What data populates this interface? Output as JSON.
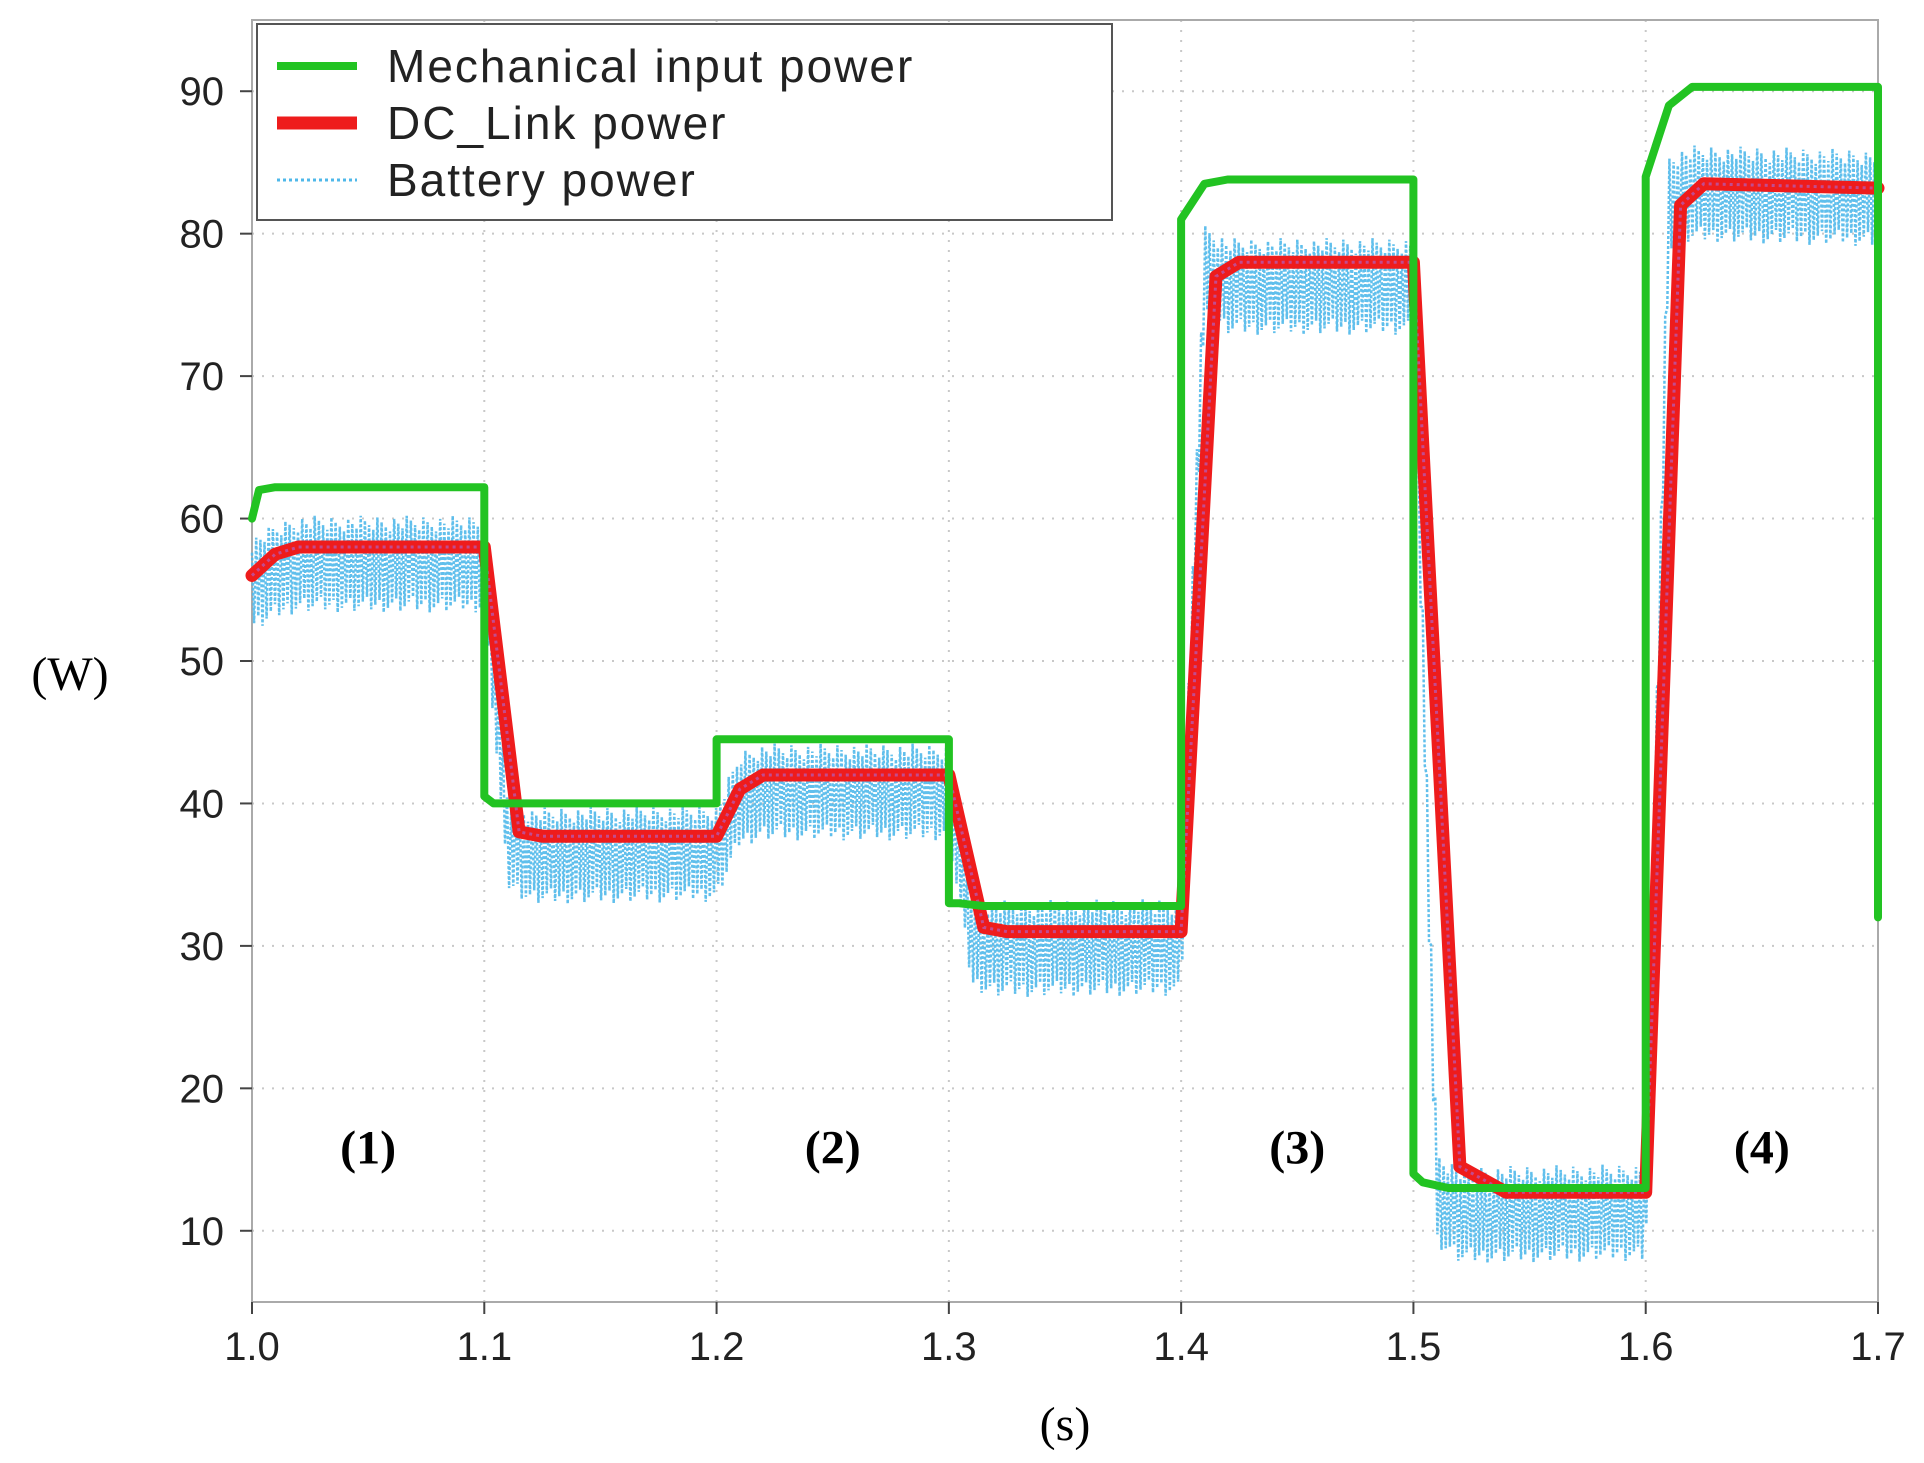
{
  "chart_data": {
    "type": "line",
    "xlabel": "(s)",
    "ylabel": "(W)",
    "xlim": [
      1.0,
      1.7
    ],
    "ylim": [
      5,
      95
    ],
    "xticks": [
      "1.0",
      "1.1",
      "1.2",
      "1.3",
      "1.4",
      "1.5",
      "1.6",
      "1.7"
    ],
    "yticks": [
      "10",
      "20",
      "30",
      "40",
      "50",
      "60",
      "70",
      "80",
      "90"
    ],
    "grid": true,
    "legend_position": "top-left",
    "annotations": [
      {
        "text": "(1)",
        "x": 1.05,
        "y": 16
      },
      {
        "text": "(2)",
        "x": 1.25,
        "y": 16
      },
      {
        "text": "(3)",
        "x": 1.45,
        "y": 16
      },
      {
        "text": "(4)",
        "x": 1.65,
        "y": 16
      }
    ],
    "series": [
      {
        "name": "Mechanical input power",
        "color": "#22c322",
        "style": "solid",
        "x": [
          1.0,
          1.003,
          1.01,
          1.1,
          1.1,
          1.104,
          1.115,
          1.2,
          1.2,
          1.3,
          1.3,
          1.304,
          1.315,
          1.4,
          1.4,
          1.41,
          1.42,
          1.5,
          1.5,
          1.504,
          1.515,
          1.6,
          1.6,
          1.61,
          1.62,
          1.7,
          1.7
        ],
        "y": [
          60,
          62,
          62.2,
          62.2,
          40.5,
          40,
          40,
          40,
          44.5,
          44.5,
          33,
          33,
          32.8,
          32.8,
          81,
          83.5,
          83.8,
          83.8,
          14,
          13.4,
          13,
          13,
          84,
          89,
          90.3,
          90.3,
          32
        ]
      },
      {
        "name": "DC_Link power",
        "color": "#ee1c1c",
        "style": "solid-thick",
        "x": [
          1.0,
          1.01,
          1.02,
          1.1,
          1.115,
          1.125,
          1.2,
          1.21,
          1.22,
          1.3,
          1.315,
          1.325,
          1.4,
          1.415,
          1.425,
          1.5,
          1.52,
          1.54,
          1.6,
          1.615,
          1.625,
          1.7
        ],
        "y": [
          56,
          57.5,
          58,
          58,
          38,
          37.7,
          37.7,
          41,
          42,
          42,
          31.3,
          31,
          31,
          77,
          78,
          78,
          14.5,
          12.7,
          12.7,
          82,
          83.5,
          83.2
        ]
      },
      {
        "name": "Battery power",
        "color": "#4fb8ea",
        "style": "dotted-ripple",
        "x": [
          1.0,
          1.01,
          1.02,
          1.1,
          1.11,
          1.12,
          1.2,
          1.21,
          1.22,
          1.3,
          1.31,
          1.32,
          1.4,
          1.41,
          1.42,
          1.5,
          1.51,
          1.52,
          1.6,
          1.61,
          1.62,
          1.7
        ],
        "y": [
          55,
          56,
          56.5,
          56.5,
          37,
          36,
          36.2,
          40,
          40.5,
          40.5,
          30,
          29.5,
          29.6,
          77,
          76,
          76,
          12,
          10.8,
          11,
          82,
          82.5,
          82.2
        ]
      }
    ]
  }
}
